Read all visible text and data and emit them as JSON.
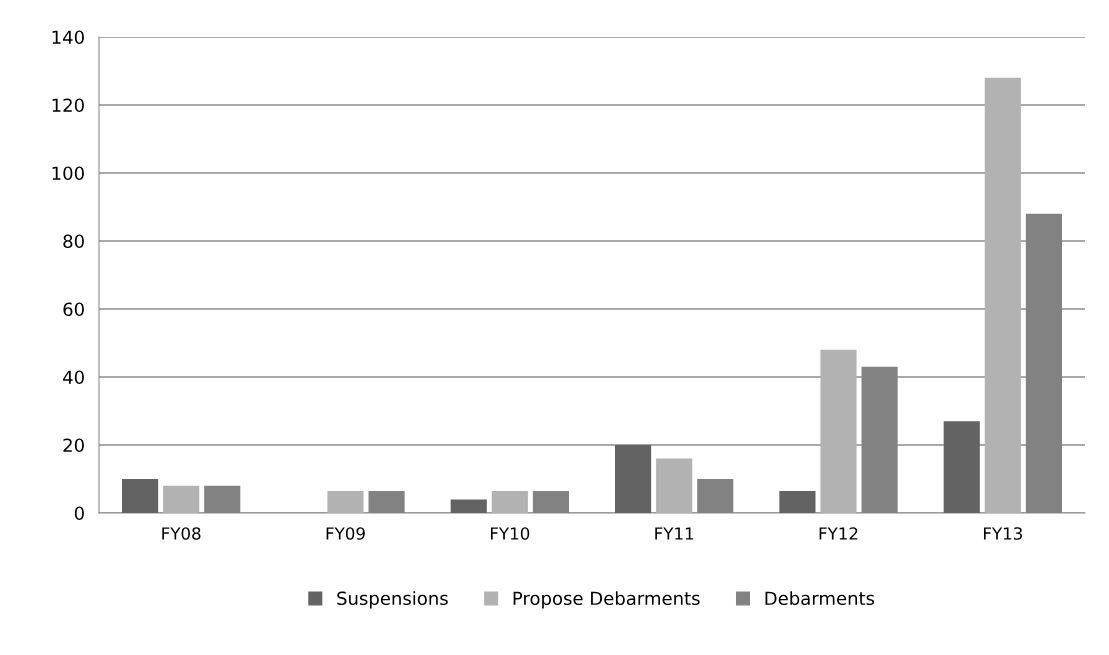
{
  "chart_data": {
    "type": "bar",
    "categories": [
      "FY08",
      "FY09",
      "FY10",
      "FY11",
      "FY12",
      "FY13"
    ],
    "series": [
      {
        "name": "Suspensions",
        "color": "#636363",
        "values": [
          10,
          0,
          4,
          20,
          6.5,
          27
        ]
      },
      {
        "name": "Propose Debarments",
        "color": "#b2b2b2",
        "values": [
          8,
          6.5,
          6.5,
          16,
          48,
          128
        ]
      },
      {
        "name": "Debarments",
        "color": "#828282",
        "values": [
          8,
          6.5,
          6.5,
          10,
          43,
          88
        ]
      }
    ],
    "ylim": [
      0,
      140
    ],
    "yticks": [
      0,
      20,
      40,
      60,
      80,
      100,
      120,
      140
    ],
    "grid": "y",
    "legend": "bottom"
  }
}
